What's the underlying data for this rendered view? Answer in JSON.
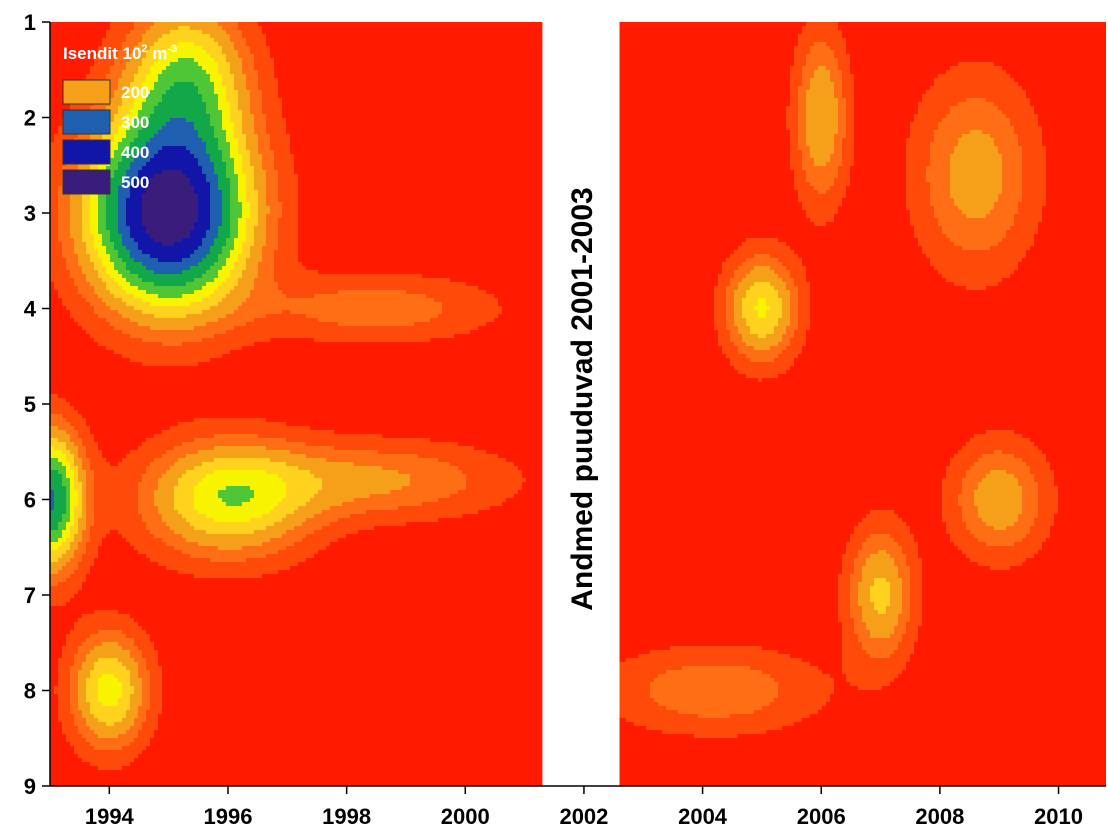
{
  "chart_data": {
    "type": "heatmap",
    "legend": {
      "title_main": "Isendit 10",
      "title_sup1": "2",
      "title_unit": " m",
      "title_sup2": "-3",
      "placement": "top-left",
      "entries": [
        {
          "label": "200",
          "color": "#F6A01A"
        },
        {
          "label": "300",
          "color": "#1F5FB0"
        },
        {
          "label": "400",
          "color": "#1216A8"
        },
        {
          "label": "500",
          "color": "#3A1C7A"
        }
      ]
    },
    "x_ticks": [
      "1994",
      "1996",
      "1998",
      "2000",
      "2002",
      "2004",
      "2006",
      "2008",
      "2010"
    ],
    "x_tick_values": [
      1994,
      1996,
      1998,
      2000,
      2002,
      2004,
      2006,
      2008,
      2010
    ],
    "y_ticks": [
      "1",
      "2",
      "3",
      "4",
      "5",
      "6",
      "7",
      "8",
      "9"
    ],
    "y_tick_values": [
      1,
      2,
      3,
      4,
      5,
      6,
      7,
      8,
      9
    ],
    "xlim": [
      1993,
      2010.8
    ],
    "ylim": [
      1,
      9
    ],
    "y_inverted": true,
    "gap": {
      "from": 2001.3,
      "to": 2002.6,
      "label": "Andmed puuduvad 2001-2003"
    },
    "colors": {
      "background": "#FF1A00",
      "bands": [
        "#FF1A00",
        "#FF4A0A",
        "#FF6E14",
        "#F6A01A",
        "#FFD21E",
        "#F8F400",
        "#4FC636",
        "#12A84A",
        "#1F5FB0",
        "#1216A8",
        "#3A1C7A"
      ]
    },
    "hotspots": [
      {
        "year": 1995,
        "depth": 3.0,
        "peak": 440,
        "sx": 1.3,
        "sy": 0.95
      },
      {
        "year": 1995.3,
        "depth": 1.6,
        "peak": 180,
        "sx": 1.0,
        "sy": 0.8
      },
      {
        "year": 1993.0,
        "depth": 6.0,
        "peak": 285,
        "sx": 0.55,
        "sy": 0.7
      },
      {
        "year": 1996,
        "depth": 6.0,
        "peak": 175,
        "sx": 1.4,
        "sy": 0.6
      },
      {
        "year": 1994,
        "depth": 8.0,
        "peak": 170,
        "sx": 0.65,
        "sy": 0.6
      },
      {
        "year": 2005,
        "depth": 4.0,
        "peak": 160,
        "sx": 0.6,
        "sy": 0.55
      },
      {
        "year": 2006,
        "depth": 2.0,
        "peak": 120,
        "sx": 0.45,
        "sy": 0.9
      },
      {
        "year": 2007,
        "depth": 7.0,
        "peak": 130,
        "sx": 0.55,
        "sy": 0.7
      },
      {
        "year": 2009,
        "depth": 6.0,
        "peak": 110,
        "sx": 0.8,
        "sy": 0.6
      },
      {
        "year": 2008.6,
        "depth": 2.6,
        "peak": 105,
        "sx": 1.0,
        "sy": 1.0
      },
      {
        "year": 2004.2,
        "depth": 8.0,
        "peak": 80,
        "sx": 1.8,
        "sy": 0.45
      },
      {
        "year": 1998.5,
        "depth": 5.8,
        "peak": 90,
        "sx": 2.2,
        "sy": 0.4
      },
      {
        "year": 1998.5,
        "depth": 4.0,
        "peak": 75,
        "sx": 2.0,
        "sy": 0.35
      }
    ]
  }
}
